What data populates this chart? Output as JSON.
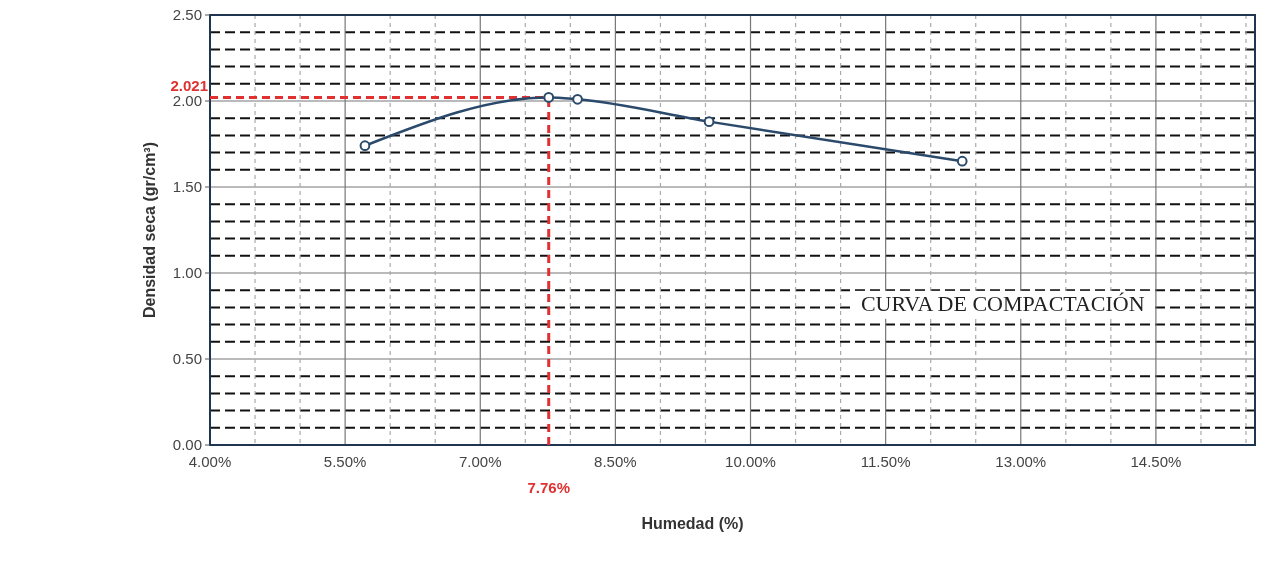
{
  "chart_data": {
    "type": "line",
    "title": "CURVA DE COMPACTACIÓN",
    "xlabel": "Humedad (%)",
    "ylabel": "Densidad seca (gr/cm³)",
    "x": [
      5.72,
      7.76,
      8.08,
      9.54,
      12.35
    ],
    "series": [
      {
        "color": "#2b4a6b",
        "values": [
          1.74,
          2.021,
          2.01,
          1.88,
          1.65
        ]
      }
    ],
    "marker": "circle",
    "grid": true,
    "xlim": [
      4,
      15.6
    ],
    "ylim": [
      0,
      2.5
    ],
    "xticks": [
      {
        "value": 4,
        "label": "4.00%"
      },
      {
        "value": 4.5,
        "label": null
      },
      {
        "value": 5,
        "label": null
      },
      {
        "value": 5.5,
        "label": "5.50%"
      },
      {
        "value": 6,
        "label": null
      },
      {
        "value": 6.5,
        "label": null
      },
      {
        "value": 7,
        "label": "7.00%"
      },
      {
        "value": 7.5,
        "label": null
      },
      {
        "value": 8,
        "label": null
      },
      {
        "value": 8.5,
        "label": "8.50%"
      },
      {
        "value": 9,
        "label": null
      },
      {
        "value": 9.5,
        "label": null
      },
      {
        "value": 10,
        "label": "10.00%"
      },
      {
        "value": 10.5,
        "label": null
      },
      {
        "value": 11,
        "label": null
      },
      {
        "value": 11.5,
        "label": "11.50%"
      },
      {
        "value": 12,
        "label": null
      },
      {
        "value": 12.5,
        "label": null
      },
      {
        "value": 13,
        "label": "13.00%"
      },
      {
        "value": 13.5,
        "label": null
      },
      {
        "value": 14,
        "label": null
      },
      {
        "value": 14.5,
        "label": "14.50%"
      },
      {
        "value": 15,
        "label": null
      },
      {
        "value": 15.5,
        "label": null
      }
    ],
    "yticks": [
      {
        "value": 0,
        "label": "0.00"
      },
      {
        "value": 0.1,
        "label": null
      },
      {
        "value": 0.2,
        "label": null
      },
      {
        "value": 0.3,
        "label": null
      },
      {
        "value": 0.4,
        "label": null
      },
      {
        "value": 0.5,
        "label": "0.50"
      },
      {
        "value": 0.6,
        "label": null
      },
      {
        "value": 0.7,
        "label": null
      },
      {
        "value": 0.8,
        "label": null
      },
      {
        "value": 0.9,
        "label": null
      },
      {
        "value": 1,
        "label": "1.00"
      },
      {
        "value": 1.1,
        "label": null
      },
      {
        "value": 1.2,
        "label": null
      },
      {
        "value": 1.3,
        "label": null
      },
      {
        "value": 1.4,
        "label": null
      },
      {
        "value": 1.5,
        "label": "1.50"
      },
      {
        "value": 1.6,
        "label": null
      },
      {
        "value": 1.7,
        "label": null
      },
      {
        "value": 1.8,
        "label": null
      },
      {
        "value": 1.9,
        "label": null
      },
      {
        "value": 2,
        "label": "2.00"
      },
      {
        "value": 2.1,
        "label": null
      },
      {
        "value": 2.2,
        "label": null
      },
      {
        "value": 2.3,
        "label": null
      },
      {
        "value": 2.4,
        "label": null
      },
      {
        "value": 2.5,
        "label": "2.50"
      }
    ],
    "ref_lines": [
      {
        "axis": "y",
        "value": 2.021,
        "label": "2.021",
        "color": "#e03030",
        "line_style": "dashed"
      },
      {
        "axis": "x",
        "value": 7.76,
        "label": "7.76%",
        "color": "#e03030",
        "line_style": "dashed"
      }
    ]
  }
}
